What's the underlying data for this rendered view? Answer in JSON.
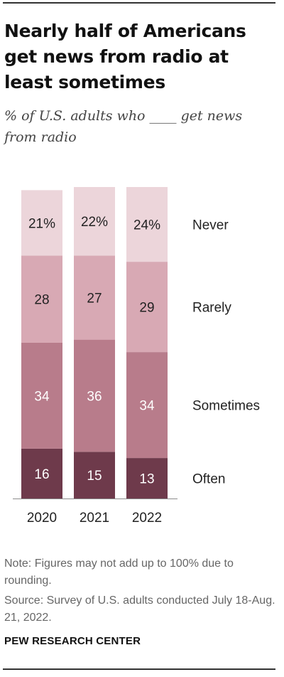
{
  "title": "Nearly half of Americans get news from radio at least sometimes",
  "subtitle": "% of U.S. adults who ____ get news from radio",
  "note": "Note: Figures may not add up to 100% due to rounding.",
  "source": "Source: Survey of U.S. adults conducted July 18-Aug. 21, 2022.",
  "brand": "PEW RESEARCH CENTER",
  "chart_data": {
    "type": "bar",
    "stacked": true,
    "categories": [
      "2020",
      "2021",
      "2022"
    ],
    "series": [
      {
        "name": "Often",
        "values": [
          16,
          15,
          13
        ],
        "labels": [
          "16",
          "15",
          "13"
        ],
        "color": "#6e3a4b",
        "text_color": "#ffffff"
      },
      {
        "name": "Sometimes",
        "values": [
          34,
          36,
          34
        ],
        "labels": [
          "34",
          "36",
          "34"
        ],
        "color": "#b87c8b",
        "text_color": "#ffffff"
      },
      {
        "name": "Rarely",
        "values": [
          28,
          27,
          29
        ],
        "labels": [
          "28",
          "27",
          "29"
        ],
        "color": "#d8a9b4",
        "text_color": "#222222"
      },
      {
        "name": "Never",
        "values": [
          21,
          22,
          24
        ],
        "labels": [
          "21%",
          "22%",
          "24%"
        ],
        "color": "#ecd5da",
        "text_color": "#222222"
      }
    ],
    "legend_placement": "right, inline with segments",
    "grid": false
  }
}
